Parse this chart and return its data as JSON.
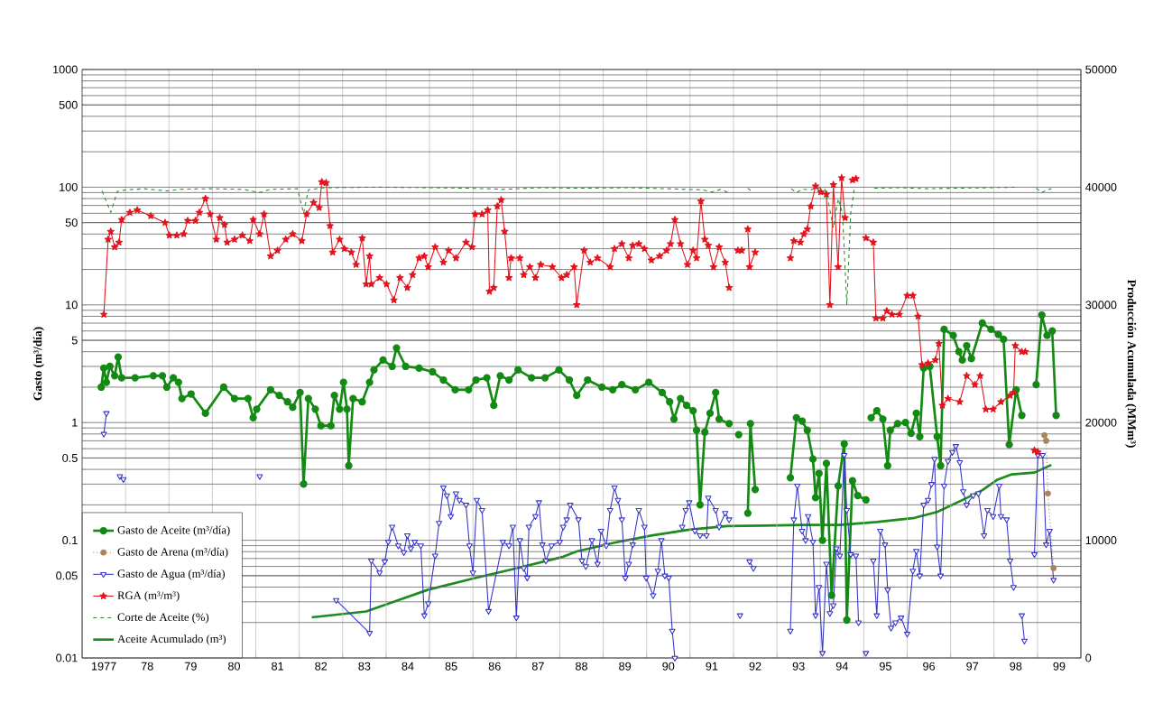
{
  "chart_data": {
    "type": "line",
    "log": "y",
    "grid": true,
    "legend": "bottom left",
    "ylabel": "Gasto (m³/día)",
    "y2label": "Producción Acumulada (MMm³)",
    "xlim": [
      1976.5,
      1999.5
    ],
    "xticks": [
      {
        "value": 1976.5,
        "label": null
      },
      {
        "value": 1977.5,
        "label": null
      },
      {
        "value": 1978.5,
        "label": null
      },
      {
        "value": 1979.5,
        "label": null
      },
      {
        "value": 1980.5,
        "label": null
      },
      {
        "value": 1981.5,
        "label": null
      },
      {
        "value": 1982.5,
        "label": null
      },
      {
        "value": 1983.5,
        "label": null
      },
      {
        "value": 1984.5,
        "label": null
      },
      {
        "value": 1985.5,
        "label": null
      },
      {
        "value": 1986.5,
        "label": null
      },
      {
        "value": 1987.5,
        "label": null
      },
      {
        "value": 1988.5,
        "label": null
      },
      {
        "value": 1989.5,
        "label": null
      },
      {
        "value": 1990.5,
        "label": null
      },
      {
        "value": 1991.5,
        "label": null
      },
      {
        "value": 1992.5,
        "label": null
      },
      {
        "value": 1993.5,
        "label": null
      },
      {
        "value": 1994.5,
        "label": null
      },
      {
        "value": 1995.5,
        "label": null
      },
      {
        "value": 1996.5,
        "label": null
      },
      {
        "value": 1997.5,
        "label": null
      },
      {
        "value": 1998.5,
        "label": null
      },
      {
        "value": 1999.5,
        "label": null
      },
      {
        "value": 1977,
        "label": "1977"
      },
      {
        "value": 1978,
        "label": "78"
      },
      {
        "value": 1979,
        "label": "79"
      },
      {
        "value": 1980,
        "label": "80"
      },
      {
        "value": 1981,
        "label": "81"
      },
      {
        "value": 1982,
        "label": "82"
      },
      {
        "value": 1983,
        "label": "83"
      },
      {
        "value": 1984,
        "label": "84"
      },
      {
        "value": 1985,
        "label": "85"
      },
      {
        "value": 1986,
        "label": "86"
      },
      {
        "value": 1987,
        "label": "87"
      },
      {
        "value": 1988,
        "label": "88"
      },
      {
        "value": 1989,
        "label": "89"
      },
      {
        "value": 1990,
        "label": "90"
      },
      {
        "value": 1991,
        "label": "91"
      },
      {
        "value": 1992,
        "label": "92"
      },
      {
        "value": 1993,
        "label": "93"
      },
      {
        "value": 1994,
        "label": "94"
      },
      {
        "value": 1995,
        "label": "95"
      },
      {
        "value": 1996,
        "label": "96"
      },
      {
        "value": 1997,
        "label": "97"
      },
      {
        "value": 1998,
        "label": "98"
      },
      {
        "value": 1999,
        "label": "99"
      }
    ],
    "ylim": [
      0.01,
      1000
    ],
    "yticks": [
      1000,
      500,
      100,
      50,
      10,
      5,
      1,
      0.5,
      0.1,
      0.05,
      0.01
    ],
    "y2lim": [
      0,
      50000
    ],
    "y2ticks": [
      0,
      10000,
      20000,
      30000,
      40000,
      50000
    ],
    "series": [
      {
        "name": "Gasto de Aceite (m³/día)",
        "color": "#138a13",
        "marker": "circle",
        "line_style": "solid",
        "x": [
          1976.94,
          1977.0,
          1977.06,
          1977.14,
          1977.25,
          1977.33,
          1977.41,
          1977.72,
          1978.14,
          1978.35,
          1978.45,
          1978.6,
          1978.72,
          1978.8,
          1979.01,
          1979.34,
          1979.76,
          1980.01,
          1980.32,
          1980.44,
          1980.52,
          1980.84,
          1981.04,
          1981.23,
          1981.35,
          1981.52,
          1981.6,
          1981.71,
          1981.87,
          1982.0,
          1982.23,
          1982.31,
          1982.43,
          1982.52,
          1982.6,
          1982.64,
          1982.74,
          1982.95,
          1983.12,
          1983.22,
          1983.43,
          1983.64,
          1983.74,
          1983.95,
          1984.26,
          1984.57,
          1984.82,
          1985.09,
          1985.4,
          1985.57,
          1985.82,
          1985.98,
          1986.13,
          1986.33,
          1986.54,
          1986.85,
          1987.16,
          1987.48,
          1987.72,
          1987.89,
          1988.14,
          1988.47,
          1988.72,
          1988.93,
          1989.24,
          1989.55,
          1989.86,
          1990.03,
          1990.13,
          1990.28,
          1990.42,
          1990.57,
          1990.65,
          1990.73,
          1990.84,
          1990.96,
          1991.09,
          1991.17,
          1991.4,
          1991.5,
          1991.62,
          1991.72,
          1991.83,
          1991.89,
          1992.0,
          1992.4,
          1992.81,
          1992.95,
          1993.08,
          1993.2,
          1993.33,
          1993.39,
          1993.47,
          1993.55,
          1993.64,
          1993.76,
          1993.91,
          1994.05,
          1994.11,
          1994.24,
          1994.36,
          1994.55,
          1994.61,
          1994.67,
          1994.8,
          1994.94,
          1995.05,
          1995.11,
          1995.28,
          1995.46,
          1995.59,
          1995.71,
          1995.79,
          1995.88,
          1996.02,
          1996.19,
          1996.27,
          1996.35,
          1996.56,
          1996.69,
          1996.77,
          1996.87,
          1996.98,
          1997.23,
          1997.43,
          1997.6,
          1997.72,
          1997.85,
          1998.01,
          1998.14,
          1998.3,
          1998.47,
          1998.6,
          1998.72,
          1998.84,
          1998.93
        ],
        "values": [
          2.0,
          2.9,
          2.2,
          3.0,
          2.5,
          3.6,
          2.4,
          2.4,
          2.5,
          2.5,
          2.0,
          2.4,
          2.2,
          1.6,
          1.75,
          1.2,
          2.0,
          1.6,
          1.6,
          1.1,
          1.3,
          1.9,
          1.7,
          1.5,
          1.35,
          1.8,
          0.3,
          1.6,
          1.3,
          0.94,
          0.94,
          1.7,
          1.3,
          2.2,
          1.3,
          0.43,
          1.6,
          1.5,
          2.2,
          2.8,
          3.4,
          3.0,
          4.3,
          3.0,
          2.9,
          2.7,
          2.3,
          1.9,
          1.9,
          2.3,
          2.4,
          1.4,
          2.5,
          2.3,
          2.8,
          2.4,
          2.4,
          2.8,
          2.3,
          1.7,
          2.3,
          2.0,
          1.9,
          2.1,
          1.9,
          2.2,
          1.8,
          1.5,
          1.07,
          1.6,
          1.4,
          1.26,
          0.86,
          0.2,
          0.83,
          1.2,
          1.8,
          1.07,
          0.98,
          null,
          0.79,
          null,
          0.17,
          0.98,
          0.27,
          null,
          0.34,
          1.1,
          1.03,
          0.86,
          0.49,
          0.23,
          0.37,
          0.1,
          0.45,
          0.034,
          0.29,
          0.66,
          0.021,
          0.32,
          0.24,
          0.22,
          null,
          1.1,
          1.26,
          1.07,
          0.43,
          0.86,
          0.98,
          1.0,
          0.81,
          1.2,
          0.76,
          2.9,
          3.0,
          0.76,
          0.43,
          6.2,
          5.5,
          4.0,
          3.4,
          4.5,
          3.5,
          7.0,
          6.2,
          5.6,
          5.1,
          0.65,
          1.9,
          1.15,
          null,
          2.1,
          8.2,
          5.5,
          6.0,
          1.15
        ]
      },
      {
        "name": "Gasto de Arena (m³/día)",
        "color": "#a8845c",
        "marker": "circle",
        "line_style": "dotted",
        "x": [
          1998.66,
          1998.7,
          1998.74,
          1998.87
        ],
        "values": [
          0.78,
          0.7,
          0.25,
          0.058
        ]
      },
      {
        "name": "Gasto de Agua (m³/día)",
        "color": "#3535c8",
        "marker": "triangle",
        "line_style": "solid",
        "x": [
          1977.0,
          1977.06,
          1977.2,
          1977.37,
          1977.41,
          1977.45,
          1978.0,
          1980.59,
          1981.5,
          1982.35,
          1983.12,
          1983.16,
          1983.35,
          1983.47,
          1983.55,
          1983.64,
          1983.78,
          1983.91,
          1983.99,
          1984.07,
          1984.16,
          1984.3,
          1984.38,
          1984.47,
          1984.63,
          1984.72,
          1984.82,
          1984.9,
          1984.99,
          1985.11,
          1985.19,
          1985.34,
          1985.42,
          1985.5,
          1985.59,
          1985.71,
          1985.86,
          1986.19,
          1986.33,
          1986.42,
          1986.5,
          1986.58,
          1986.67,
          1986.75,
          1986.79,
          1986.94,
          1987.02,
          1987.1,
          1987.18,
          1987.31,
          1987.5,
          1987.58,
          1987.66,
          1987.74,
          1987.93,
          1988.01,
          1988.1,
          1988.24,
          1988.37,
          1988.45,
          1988.57,
          1988.66,
          1988.76,
          1988.84,
          1988.93,
          1989.01,
          1989.09,
          1989.18,
          1989.32,
          1989.45,
          1989.49,
          1989.65,
          1989.76,
          1989.84,
          1989.92,
          1990.01,
          1990.09,
          1990.15,
          1990.24,
          1990.32,
          1990.4,
          1990.48,
          1990.61,
          1990.73,
          1990.88,
          1990.92,
          1991.09,
          1991.17,
          1991.31,
          1991.4,
          1991.5,
          1991.65,
          1991.76,
          1991.87,
          1991.96,
          1992.4,
          1992.81,
          1992.89,
          1992.97,
          1993.08,
          1993.16,
          1993.22,
          1993.33,
          1993.39,
          1993.47,
          1993.55,
          1993.64,
          1993.72,
          1993.8,
          1993.87,
          1993.95,
          1994.05,
          1994.11,
          1994.2,
          1994.32,
          1994.38,
          1994.46,
          1994.55,
          1994.63,
          1994.72,
          1994.8,
          1994.88,
          1994.99,
          1995.05,
          1995.13,
          1995.23,
          1995.36,
          1995.5,
          1995.63,
          1995.71,
          1995.79,
          1995.88,
          1995.98,
          1996.06,
          1996.13,
          1996.19,
          1996.27,
          1996.35,
          1996.44,
          1996.54,
          1996.62,
          1996.71,
          1996.79,
          1996.87,
          1997.02,
          1997.14,
          1997.27,
          1997.35,
          1997.48,
          1997.62,
          1997.66,
          1997.79,
          1997.87,
          1997.95,
          1998.05,
          1998.14,
          1998.2,
          1998.3,
          1998.43,
          1998.51,
          1998.62,
          1998.7,
          1998.78,
          1998.87
        ],
        "values": [
          0.8,
          1.2,
          null,
          0.35,
          null,
          0.33,
          null,
          0.35,
          null,
          0.031,
          0.0163,
          0.067,
          0.053,
          0.066,
          0.097,
          0.13,
          0.09,
          0.079,
          0.11,
          0.085,
          0.097,
          0.09,
          0.023,
          0.029,
          0.074,
          0.14,
          0.28,
          0.24,
          0.16,
          0.25,
          0.22,
          0.2,
          0.09,
          0.053,
          0.22,
          0.18,
          0.025,
          0.097,
          0.09,
          0.13,
          0.022,
          0.1,
          0.058,
          0.048,
          0.13,
          0.16,
          0.21,
          0.092,
          0.067,
          0.09,
          0.097,
          0.13,
          0.15,
          0.2,
          0.15,
          0.067,
          0.06,
          0.1,
          0.063,
          0.12,
          0.09,
          0.18,
          0.28,
          0.22,
          0.15,
          0.048,
          0.063,
          0.092,
          0.18,
          0.13,
          0.048,
          0.034,
          0.055,
          0.1,
          0.05,
          0.048,
          0.017,
          0.01,
          null,
          0.13,
          0.18,
          0.21,
          0.12,
          0.11,
          0.11,
          0.23,
          0.18,
          0.13,
          0.17,
          0.15,
          null,
          0.023,
          null,
          0.066,
          0.058,
          null,
          0.017,
          0.15,
          0.29,
          0.12,
          0.1,
          0.16,
          0.097,
          0.023,
          0.04,
          0.011,
          0.063,
          0.024,
          0.028,
          0.085,
          0.074,
          0.53,
          0.18,
          0.076,
          0.074,
          0.02,
          null,
          0.011,
          null,
          0.067,
          0.023,
          0.12,
          0.092,
          0.038,
          0.018,
          0.02,
          0.022,
          0.016,
          0.055,
          0.081,
          0.05,
          0.2,
          0.22,
          0.3,
          0.49,
          0.088,
          0.05,
          0.29,
          0.47,
          0.56,
          0.63,
          0.46,
          0.26,
          0.2,
          0.24,
          0.25,
          0.11,
          0.18,
          0.16,
          0.29,
          0.16,
          0.15,
          0.067,
          0.04,
          null,
          0.023,
          0.014,
          null,
          0.076,
          0.53,
          0.53,
          0.092,
          0.12,
          0.046
        ]
      },
      {
        "name": "RGA (m³/m³)",
        "color": "#e3141e",
        "marker": "star",
        "line_style": "solid",
        "x": [
          1977.0,
          1977.1,
          1977.16,
          1977.25,
          1977.35,
          1977.41,
          1977.6,
          1977.77,
          1978.08,
          1978.41,
          1978.51,
          1978.68,
          1978.84,
          1978.93,
          1979.11,
          1979.2,
          1979.34,
          1979.45,
          1979.59,
          1979.67,
          1979.78,
          1979.84,
          1980.01,
          1980.19,
          1980.36,
          1980.44,
          1980.59,
          1980.69,
          1980.84,
          1981.0,
          1981.19,
          1981.35,
          1981.56,
          1981.67,
          1981.83,
          1981.96,
          1982.02,
          1982.12,
          1982.21,
          1982.27,
          1982.43,
          1982.54,
          1982.7,
          1982.81,
          1982.95,
          1983.04,
          1983.12,
          1983.16,
          1983.35,
          1983.51,
          1983.68,
          1983.82,
          1983.99,
          1984.11,
          1984.26,
          1984.38,
          1984.47,
          1984.63,
          1984.82,
          1984.94,
          1985.11,
          1985.34,
          1985.48,
          1985.55,
          1985.71,
          1985.84,
          1985.88,
          1985.98,
          1986.06,
          1986.15,
          1986.23,
          1986.33,
          1986.38,
          1986.58,
          1986.67,
          1986.81,
          1986.94,
          1987.06,
          1987.33,
          1987.54,
          1987.66,
          1987.83,
          1987.89,
          1988.06,
          1988.2,
          1988.37,
          1988.66,
          1988.76,
          1988.93,
          1989.09,
          1989.18,
          1989.32,
          1989.45,
          1989.61,
          1989.8,
          1989.96,
          1990.05,
          1990.15,
          1990.28,
          1990.44,
          1990.57,
          1990.65,
          1990.75,
          1990.84,
          1990.92,
          1991.04,
          1991.17,
          1991.31,
          1991.4,
          1991.5,
          1991.6,
          1991.69,
          1991.76,
          1991.83,
          1991.87,
          1992.0,
          1992.4,
          1992.81,
          1992.89,
          1993.04,
          1993.12,
          1993.2,
          1993.28,
          1993.39,
          1993.51,
          1993.64,
          1993.72,
          1993.8,
          1993.91,
          1993.99,
          1994.07,
          1994.15,
          1994.24,
          1994.28,
          1994.32,
          1994.43,
          1994.55,
          1994.72,
          1994.78,
          1994.94,
          1995.03,
          1995.15,
          1995.32,
          1995.5,
          1995.63,
          1995.75,
          1995.84,
          1995.98,
          1996.15,
          1996.23,
          1996.31,
          1996.44,
          1996.71,
          1996.87,
          1997.06,
          1997.18,
          1997.31,
          1997.48,
          1997.66,
          1997.87,
          1997.95,
          1997.99,
          1998.14,
          1998.22,
          1998.32,
          1998.43,
          1998.47,
          1998.51
        ],
        "values": [
          8.3,
          36,
          42,
          31,
          34,
          53,
          61,
          64,
          57,
          50,
          39,
          39,
          40,
          52,
          52,
          61,
          80,
          59,
          36,
          55,
          48,
          34,
          36,
          39,
          35,
          53,
          40,
          59,
          26,
          29,
          36,
          40,
          35,
          59,
          74,
          67,
          111,
          109,
          47,
          28,
          36,
          30,
          28,
          22,
          37,
          15,
          26,
          15,
          17,
          15,
          11,
          17,
          14,
          18,
          25,
          26,
          21,
          31,
          23,
          29,
          25,
          34,
          31,
          59,
          59,
          64,
          13,
          14,
          69,
          78,
          42,
          17,
          25,
          25,
          18,
          21,
          17,
          22,
          21,
          17,
          18,
          21,
          10,
          29,
          23,
          25,
          21,
          30,
          33,
          25,
          32,
          33,
          30,
          24,
          26,
          29,
          33,
          53,
          33,
          22,
          29,
          25,
          76,
          36,
          32,
          21,
          31,
          23,
          14,
          null,
          29,
          29,
          null,
          44,
          21,
          28,
          null,
          25,
          35,
          34,
          40,
          44,
          69,
          102,
          91,
          87,
          10,
          105,
          21,
          120,
          55,
          null,
          115,
          null,
          118,
          null,
          37,
          34,
          7.7,
          7.7,
          8.9,
          8.3,
          8.3,
          12,
          12,
          8,
          3.1,
          3.2,
          3.4,
          4.7,
          1.4,
          1.6,
          1.5,
          2.5,
          2.1,
          2.5,
          1.3,
          1.3,
          1.5,
          1.7,
          1.8,
          4.5,
          4.0,
          4.0,
          null,
          0.58,
          null,
          0.56
        ]
      },
      {
        "name": "Corte de Aceite (%)",
        "color": "#2e8b2e",
        "marker": "none",
        "line_style": "dashed",
        "x": [
          1976.96,
          1977.16,
          1977.31,
          1977.52,
          1977.93,
          1978.45,
          1978.76,
          1979.38,
          1980.21,
          1980.59,
          1980.84,
          1981.46,
          1981.6,
          1981.71,
          1982.08,
          1983.33,
          1984.57,
          1985.4,
          1986.23,
          1987.06,
          1987.89,
          1989.13,
          1989.96,
          1990.79,
          1991.0,
          1991.21,
          1991.38,
          1991.5,
          1991.83,
          1991.96,
          1992.4,
          1992.83,
          1992.95,
          1993.08,
          1993.28,
          1993.43,
          1993.6,
          1993.7,
          1993.8,
          1993.91,
          1994.01,
          1994.11,
          1994.2,
          1994.28,
          1994.4,
          1994.74,
          1995.36,
          1995.98,
          1996.6,
          1997.43,
          1998.01,
          1998.2,
          1998.47,
          1998.6,
          1998.72,
          1998.82
        ],
        "values": [
          93,
          61,
          92,
          95,
          97,
          93,
          96,
          97,
          96,
          90,
          96,
          97,
          60,
          95,
          99,
          100,
          99,
          98,
          96,
          99,
          98,
          99,
          97,
          95,
          91,
          96,
          90,
          null,
          98,
          90,
          null,
          97,
          90,
          96,
          95,
          99,
          97,
          70,
          45,
          80,
          60,
          10,
          60,
          95,
          null,
          98,
          99,
          97,
          98,
          99,
          100,
          null,
          98,
          90,
          95,
          97
        ]
      },
      {
        "name": "Aceite Acumulado (m³)",
        "color": "#1c8c1c",
        "marker": "none",
        "line_style": "solid",
        "axis": "y2",
        "x": [
          1981.79,
          1983.04,
          1983.78,
          1984.47,
          1985.5,
          1986.54,
          1987.58,
          1987.89,
          1988.76,
          1989.61,
          1990.48,
          1991.35,
          1992.21,
          1993.08,
          1993.95,
          1994.8,
          1995.67,
          1996.19,
          1996.79,
          1997.23,
          1997.58,
          1997.91,
          1998.43,
          1998.82
        ],
        "values": [
          3450,
          3950,
          4900,
          5800,
          6750,
          7650,
          8600,
          9050,
          9800,
          10400,
          10900,
          11200,
          11250,
          11300,
          11300,
          11550,
          11900,
          12400,
          13450,
          14250,
          15150,
          15600,
          15750,
          16400
        ]
      }
    ]
  }
}
